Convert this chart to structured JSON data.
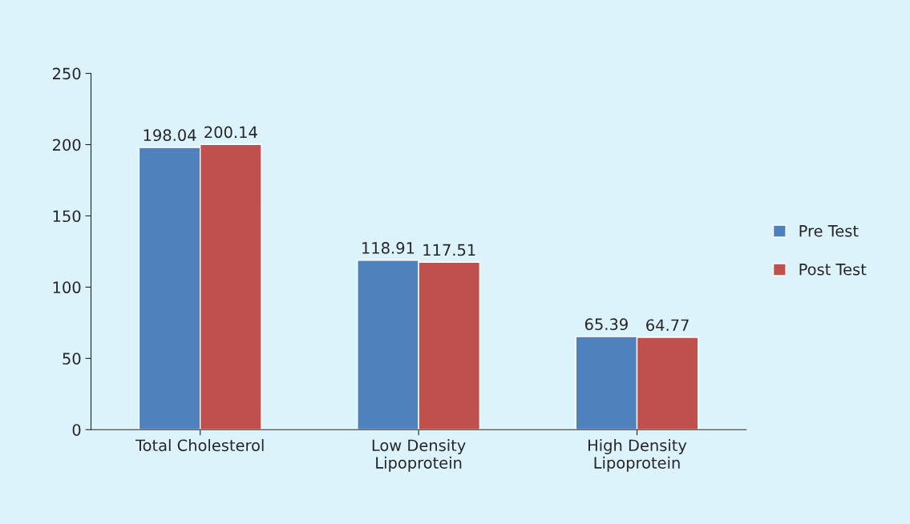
{
  "chart_data": {
    "type": "bar",
    "categories": [
      "Total Cholesterol",
      "Low Density\nLipoprotein",
      "High Density\nLipoprotein"
    ],
    "series": [
      {
        "name": "Pre Test",
        "color": "#4f81bd",
        "values": [
          198.04,
          118.91,
          65.39
        ]
      },
      {
        "name": "Post Test",
        "color": "#c0504d",
        "values": [
          200.14,
          117.51,
          64.77
        ]
      }
    ],
    "ylim": [
      0,
      250
    ],
    "yticks": [
      0,
      50,
      100,
      150,
      200,
      250
    ],
    "data_labels": true,
    "grid": false,
    "legend": "right"
  }
}
